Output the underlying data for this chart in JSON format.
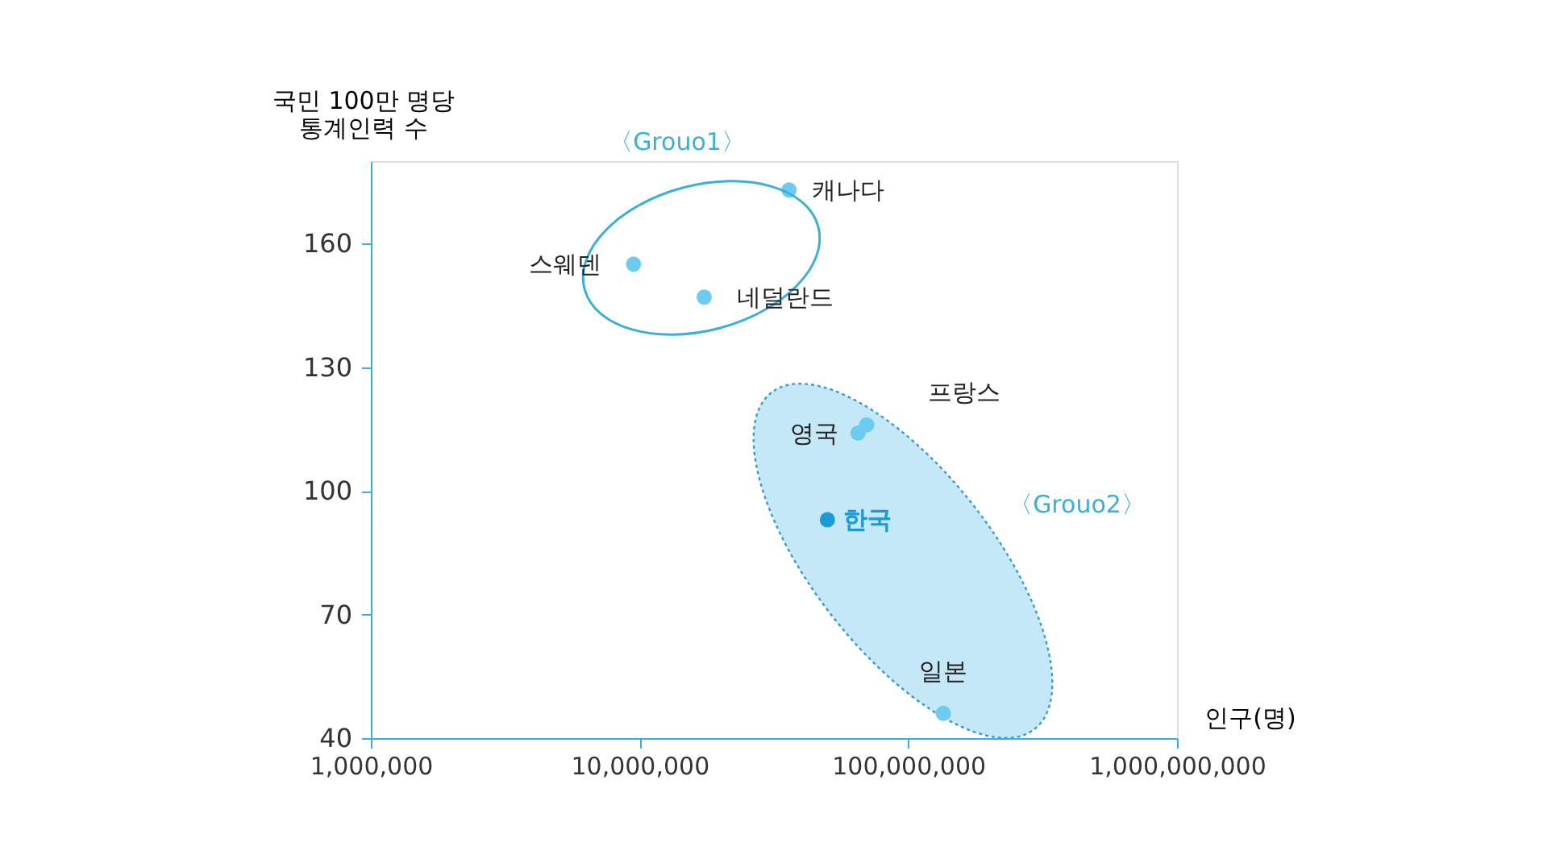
{
  "chart_data": {
    "type": "scatter",
    "xlabel": "인구(명)",
    "ylabel": "국민 100만 명당\n통계인력 수",
    "log": "x",
    "xlim": [
      1000000,
      1000000000
    ],
    "ylim": [
      40,
      180
    ],
    "xticks": [
      {
        "value": 1000000,
        "label": "1,000,000"
      },
      {
        "value": 10000000,
        "label": "10,000,000"
      },
      {
        "value": 100000000,
        "label": "100,000,000"
      },
      {
        "value": 1000000000,
        "label": "1,000,000,000"
      }
    ],
    "yticks": [
      40,
      70,
      100,
      130,
      160
    ],
    "grid": false,
    "legend": false,
    "marker": "circle",
    "annotations": [
      "〈Grouo1〉",
      "〈Grouo2〉"
    ],
    "series": [
      {
        "name": "캐나다",
        "color": "#6ccbee",
        "x": [
          36000000
        ],
        "values": [
          173
        ]
      },
      {
        "name": "스웨덴",
        "color": "#6ccbee",
        "x": [
          9500000
        ],
        "values": [
          155
        ]
      },
      {
        "name": "네덜란드",
        "color": "#6ccbee",
        "x": [
          17400000
        ],
        "values": [
          147
        ]
      },
      {
        "name": "프랑스",
        "color": "#6ccbee",
        "x": [
          70000000
        ],
        "values": [
          116
        ]
      },
      {
        "name": "영국",
        "color": "#6ccbee",
        "x": [
          65000000
        ],
        "values": [
          114
        ]
      },
      {
        "name": "한국",
        "color": "#1a9ad6",
        "x": [
          50000000
        ],
        "values": [
          93
        ]
      },
      {
        "name": "일본",
        "color": "#6ccbee",
        "x": [
          135000000
        ],
        "values": [
          46
        ]
      }
    ]
  }
}
